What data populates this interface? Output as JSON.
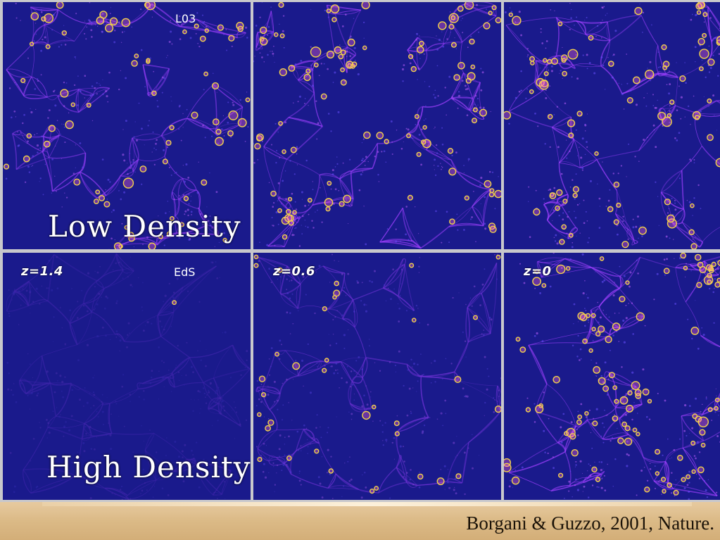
{
  "rows": [
    {
      "density_label": "Low Density",
      "panels": [
        {
          "z_label": "",
          "model_label": "L03",
          "intensity": 0.9,
          "n_clusters": 70
        },
        {
          "z_label": "",
          "model_label": "",
          "intensity": 0.95,
          "n_clusters": 95
        },
        {
          "z_label": "",
          "model_label": "",
          "intensity": 1.0,
          "n_clusters": 90
        }
      ]
    },
    {
      "density_label": "High Density",
      "panels": [
        {
          "z_label": "z=1.4",
          "model_label": "EdS",
          "intensity": 0.25,
          "n_clusters": 1
        },
        {
          "z_label": "z=0.6",
          "model_label": "",
          "intensity": 0.6,
          "n_clusters": 35
        },
        {
          "z_label": "z=0",
          "model_label": "",
          "intensity": 1.0,
          "n_clusters": 120
        }
      ]
    }
  ],
  "colors": {
    "background": "#1a1a8c",
    "filament": "#a040ff",
    "cluster_ring": "#f2d24a",
    "footer": "#dcbb88"
  },
  "citation": "Borgani & Guzzo, 2001, Nature."
}
